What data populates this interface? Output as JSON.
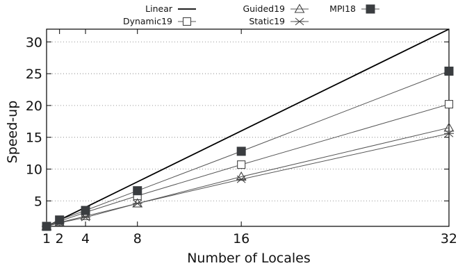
{
  "chart_data": {
    "type": "line",
    "xlabel": "Number of Locales",
    "ylabel": "Speed-up",
    "xlim": [
      1,
      32
    ],
    "ylim": [
      1,
      32
    ],
    "x_ticks": [
      1,
      2,
      4,
      8,
      16,
      32
    ],
    "y_ticks": [
      5,
      10,
      15,
      20,
      25,
      30
    ],
    "grid": "horizontal-dotted",
    "legend_position": "top",
    "x": [
      1,
      2,
      4,
      8,
      16,
      32
    ],
    "series": [
      {
        "name": "Linear",
        "marker": "none",
        "values": [
          1,
          2,
          4,
          8,
          16,
          32
        ]
      },
      {
        "name": "Dynamic19",
        "marker": "open-square",
        "values": [
          1,
          1.8,
          3.2,
          5.8,
          10.7,
          20.2
        ]
      },
      {
        "name": "Guided19",
        "marker": "open-triangle",
        "values": [
          1,
          1.6,
          2.6,
          4.6,
          8.8,
          16.5
        ]
      },
      {
        "name": "Static19",
        "marker": "x",
        "values": [
          1,
          1.55,
          2.4,
          4.6,
          8.4,
          15.6
        ]
      },
      {
        "name": "MPI18",
        "marker": "filled-square",
        "values": [
          1,
          2.0,
          3.5,
          6.6,
          12.8,
          25.4
        ]
      }
    ]
  }
}
